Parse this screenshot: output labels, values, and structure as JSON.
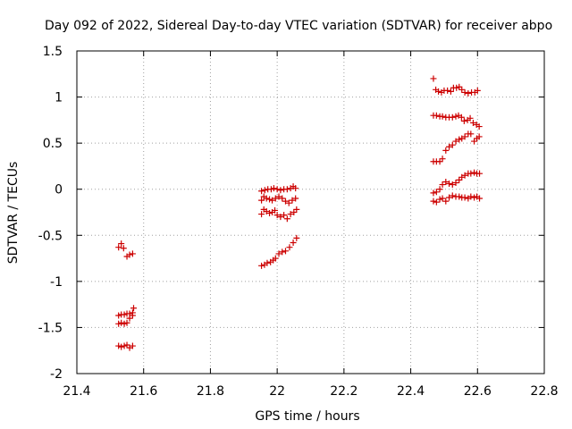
{
  "chart_data": {
    "type": "scatter",
    "title": "Day 092 of 2022, Sidereal Day-to-day VTEC variation (SDTVAR) for receiver abpo",
    "xlabel": "GPS time / hours",
    "ylabel": "SDTVAR / TECUs",
    "xlim": [
      21.4,
      22.8
    ],
    "ylim": [
      -2,
      1.5
    ],
    "xticks": [
      21.4,
      21.6,
      21.8,
      22,
      22.2,
      22.4,
      22.6,
      22.8
    ],
    "xtick_labels": [
      "21.4",
      "21.6",
      "21.8",
      "22",
      "22.2",
      "22.4",
      "22.6",
      "22.8"
    ],
    "yticks": [
      -2,
      -1.5,
      -1,
      -0.5,
      0,
      0.5,
      1,
      1.5
    ],
    "ytick_labels": [
      "-2",
      "-1.5",
      "-1",
      "-0.5",
      "0",
      "0.5",
      "1",
      "1.5"
    ],
    "grid": true,
    "marker": "+",
    "color": "#cc0000",
    "series": [
      {
        "name": "SDTVAR",
        "points": [
          [
            21.525,
            -0.63
          ],
          [
            21.533,
            -0.59
          ],
          [
            21.54,
            -0.64
          ],
          [
            21.55,
            -0.73
          ],
          [
            21.558,
            -0.71
          ],
          [
            21.567,
            -0.7
          ],
          [
            21.525,
            -1.37
          ],
          [
            21.533,
            -1.36
          ],
          [
            21.542,
            -1.36
          ],
          [
            21.55,
            -1.35
          ],
          [
            21.558,
            -1.35
          ],
          [
            21.567,
            -1.34
          ],
          [
            21.57,
            -1.29
          ],
          [
            21.525,
            -1.46
          ],
          [
            21.533,
            -1.45
          ],
          [
            21.542,
            -1.46
          ],
          [
            21.55,
            -1.45
          ],
          [
            21.558,
            -1.4
          ],
          [
            21.567,
            -1.37
          ],
          [
            21.525,
            -1.7
          ],
          [
            21.533,
            -1.71
          ],
          [
            21.542,
            -1.7
          ],
          [
            21.55,
            -1.69
          ],
          [
            21.558,
            -1.72
          ],
          [
            21.567,
            -1.7
          ],
          [
            21.953,
            -0.02
          ],
          [
            21.963,
            -0.01
          ],
          [
            21.972,
            0.0
          ],
          [
            21.982,
            0.0
          ],
          [
            21.99,
            0.01
          ],
          [
            22.0,
            0.0
          ],
          [
            22.01,
            -0.01
          ],
          [
            22.02,
            0.0
          ],
          [
            22.03,
            0.0
          ],
          [
            22.04,
            0.01
          ],
          [
            22.048,
            0.03
          ],
          [
            22.055,
            0.01
          ],
          [
            21.953,
            -0.12
          ],
          [
            21.96,
            -0.08
          ],
          [
            21.968,
            -0.1
          ],
          [
            21.977,
            -0.11
          ],
          [
            21.985,
            -0.12
          ],
          [
            21.995,
            -0.1
          ],
          [
            22.005,
            -0.08
          ],
          [
            22.015,
            -0.1
          ],
          [
            22.025,
            -0.13
          ],
          [
            22.035,
            -0.15
          ],
          [
            22.045,
            -0.12
          ],
          [
            22.055,
            -0.1
          ],
          [
            21.953,
            -0.27
          ],
          [
            21.96,
            -0.22
          ],
          [
            21.968,
            -0.24
          ],
          [
            21.977,
            -0.26
          ],
          [
            21.985,
            -0.25
          ],
          [
            21.993,
            -0.23
          ],
          [
            22.0,
            -0.28
          ],
          [
            22.01,
            -0.3
          ],
          [
            22.02,
            -0.28
          ],
          [
            22.03,
            -0.32
          ],
          [
            22.04,
            -0.27
          ],
          [
            22.05,
            -0.25
          ],
          [
            22.058,
            -0.22
          ],
          [
            21.953,
            -0.83
          ],
          [
            21.962,
            -0.82
          ],
          [
            21.97,
            -0.8
          ],
          [
            21.98,
            -0.79
          ],
          [
            21.988,
            -0.77
          ],
          [
            21.995,
            -0.75
          ],
          [
            22.005,
            -0.7
          ],
          [
            22.015,
            -0.68
          ],
          [
            22.025,
            -0.67
          ],
          [
            22.037,
            -0.63
          ],
          [
            22.048,
            -0.58
          ],
          [
            22.058,
            -0.53
          ],
          [
            22.468,
            1.2
          ],
          [
            22.475,
            1.08
          ],
          [
            22.483,
            1.06
          ],
          [
            22.492,
            1.05
          ],
          [
            22.5,
            1.07
          ],
          [
            22.51,
            1.07
          ],
          [
            22.52,
            1.06
          ],
          [
            22.528,
            1.1
          ],
          [
            22.537,
            1.1
          ],
          [
            22.545,
            1.11
          ],
          [
            22.553,
            1.08
          ],
          [
            22.562,
            1.05
          ],
          [
            22.572,
            1.04
          ],
          [
            22.582,
            1.05
          ],
          [
            22.592,
            1.05
          ],
          [
            22.6,
            1.07
          ],
          [
            22.468,
            0.8
          ],
          [
            22.477,
            0.8
          ],
          [
            22.487,
            0.79
          ],
          [
            22.495,
            0.79
          ],
          [
            22.505,
            0.78
          ],
          [
            22.515,
            0.78
          ],
          [
            22.525,
            0.78
          ],
          [
            22.535,
            0.79
          ],
          [
            22.543,
            0.8
          ],
          [
            22.552,
            0.78
          ],
          [
            22.56,
            0.74
          ],
          [
            22.57,
            0.75
          ],
          [
            22.578,
            0.77
          ],
          [
            22.587,
            0.72
          ],
          [
            22.597,
            0.7
          ],
          [
            22.605,
            0.68
          ],
          [
            22.468,
            0.3
          ],
          [
            22.477,
            0.3
          ],
          [
            22.487,
            0.3
          ],
          [
            22.495,
            0.33
          ],
          [
            22.505,
            0.42
          ],
          [
            22.515,
            0.46
          ],
          [
            22.525,
            0.48
          ],
          [
            22.535,
            0.52
          ],
          [
            22.545,
            0.54
          ],
          [
            22.553,
            0.55
          ],
          [
            22.562,
            0.57
          ],
          [
            22.572,
            0.6
          ],
          [
            22.58,
            0.6
          ],
          [
            22.59,
            0.52
          ],
          [
            22.598,
            0.55
          ],
          [
            22.605,
            0.57
          ],
          [
            22.468,
            -0.04
          ],
          [
            22.477,
            -0.03
          ],
          [
            22.487,
            0.0
          ],
          [
            22.495,
            0.05
          ],
          [
            22.505,
            0.08
          ],
          [
            22.515,
            0.06
          ],
          [
            22.525,
            0.05
          ],
          [
            22.535,
            0.07
          ],
          [
            22.545,
            0.1
          ],
          [
            22.553,
            0.13
          ],
          [
            22.562,
            0.15
          ],
          [
            22.572,
            0.17
          ],
          [
            22.58,
            0.17
          ],
          [
            22.59,
            0.18
          ],
          [
            22.598,
            0.17
          ],
          [
            22.606,
            0.17
          ],
          [
            22.468,
            -0.13
          ],
          [
            22.477,
            -0.14
          ],
          [
            22.487,
            -0.11
          ],
          [
            22.495,
            -0.1
          ],
          [
            22.505,
            -0.13
          ],
          [
            22.515,
            -0.09
          ],
          [
            22.525,
            -0.07
          ],
          [
            22.535,
            -0.08
          ],
          [
            22.545,
            -0.08
          ],
          [
            22.553,
            -0.09
          ],
          [
            22.562,
            -0.09
          ],
          [
            22.572,
            -0.1
          ],
          [
            22.58,
            -0.08
          ],
          [
            22.59,
            -0.09
          ],
          [
            22.598,
            -0.08
          ],
          [
            22.606,
            -0.1
          ]
        ]
      }
    ]
  }
}
